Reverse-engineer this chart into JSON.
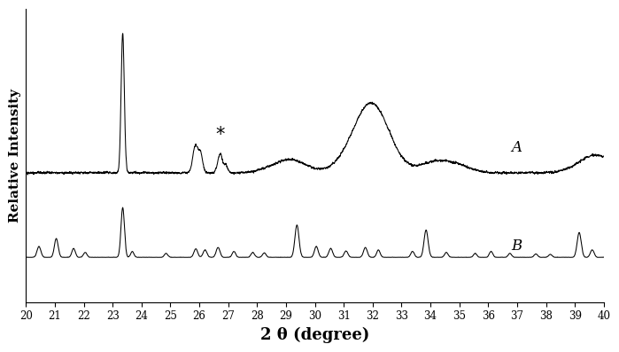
{
  "xlabel": "2 θ (degree)",
  "ylabel": "Relative Intensity",
  "label_A": "A",
  "label_B": "B",
  "xmin": 20,
  "xmax": 40,
  "background_color": "#ffffff",
  "line_color": "#000000"
}
